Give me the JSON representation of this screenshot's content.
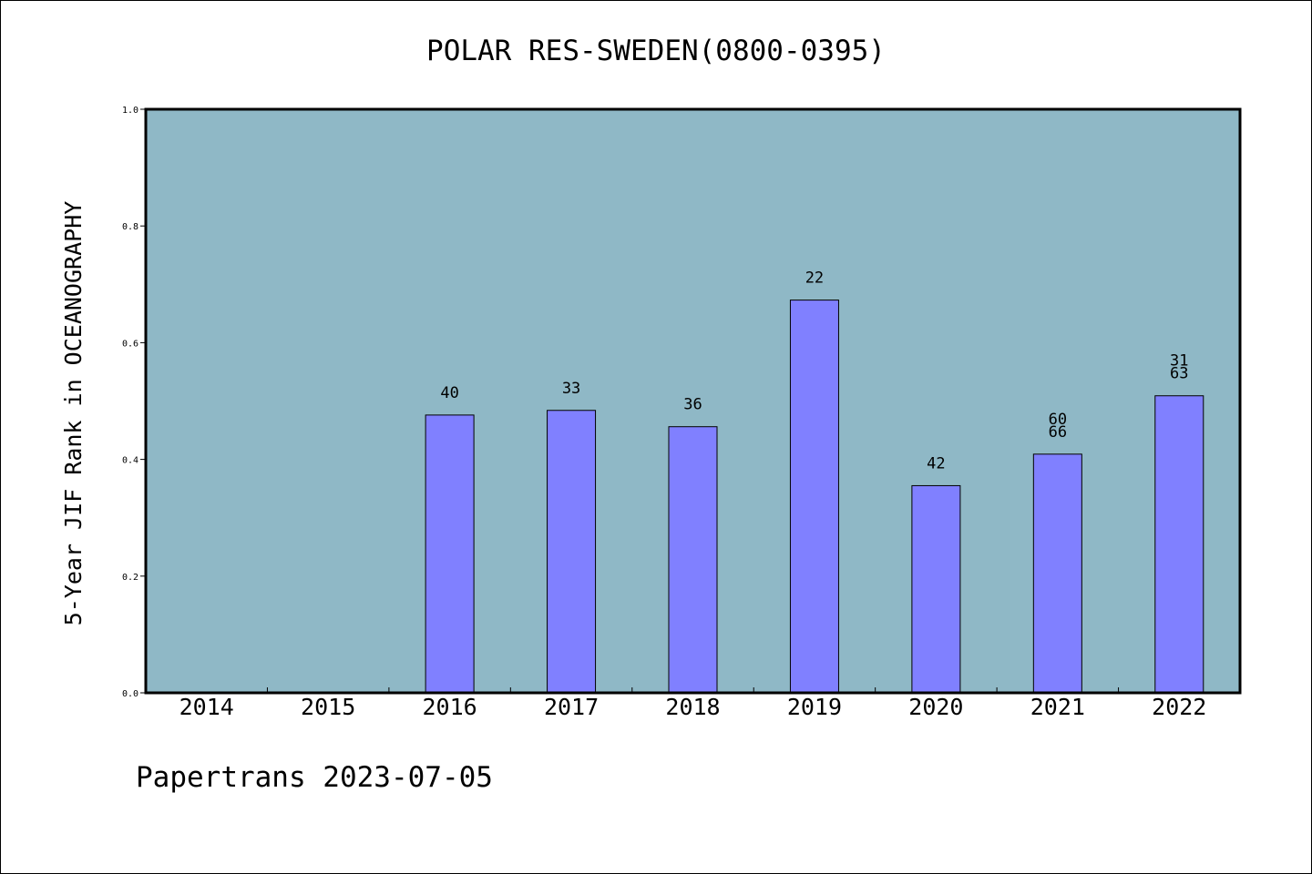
{
  "chart_data": {
    "type": "bar",
    "title": "POLAR RES-SWEDEN(0800-0395)",
    "xlabel": "",
    "ylabel": "5-Year JIF Rank in OCEANOGRAPHY",
    "ylim": [
      0.0,
      1.0
    ],
    "yticks": [
      "0.0",
      "0.2",
      "0.4",
      "0.6",
      "0.8",
      "1.0"
    ],
    "ytick_values": [
      0.0,
      0.2,
      0.4,
      0.6,
      0.8,
      1.0
    ],
    "categories": [
      "2014",
      "2015",
      "2016",
      "2017",
      "2018",
      "2019",
      "2020",
      "2021",
      "2022"
    ],
    "values": [
      null,
      null,
      0.476,
      0.484,
      0.456,
      0.673,
      0.355,
      0.409,
      0.509
    ],
    "bar_labels": [
      [],
      [],
      [
        "40"
      ],
      [
        "33"
      ],
      [
        "36"
      ],
      [
        "22"
      ],
      [
        "42"
      ],
      [
        "60",
        "66"
      ],
      [
        "31",
        "63"
      ]
    ],
    "grid": false,
    "legend": "none",
    "colors": {
      "plot_background": "#8fb8c6",
      "bar_fill": "#8080ff",
      "bar_stroke": "#000000",
      "axis": "#000000"
    }
  },
  "footer": "Papertrans 2023-07-05"
}
